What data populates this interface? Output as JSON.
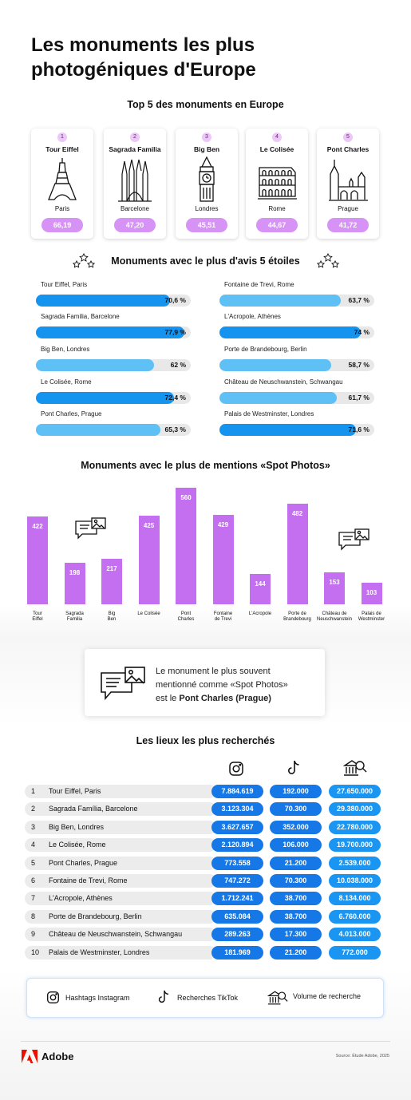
{
  "title": "Les monuments les plus photogéniques d'Europe",
  "top5": {
    "heading": "Top 5 des monuments en Europe",
    "items": [
      {
        "rank": "1",
        "name": "Tour Eiffel",
        "city": "Paris",
        "score": "66,19"
      },
      {
        "rank": "2",
        "name": "Sagrada Familia",
        "city": "Barcelone",
        "score": "47,20"
      },
      {
        "rank": "3",
        "name": "Big Ben",
        "city": "Londres",
        "score": "45,51"
      },
      {
        "rank": "4",
        "name": "Le Colisée",
        "city": "Rome",
        "score": "44,67"
      },
      {
        "rank": "5",
        "name": "Pont Charles",
        "city": "Prague",
        "score": "41,72"
      }
    ]
  },
  "ratings": {
    "heading": "Monuments avec le plus d'avis 5 étoiles",
    "dark_color": "#1493ef",
    "light_color": "#5fc0f5",
    "items": [
      {
        "label": "Tour Eiffel, Paris",
        "value": 70.6,
        "value_text": "70,6 %",
        "shade": "dark"
      },
      {
        "label": "Sagrada Familia, Barcelone",
        "value": 77.9,
        "value_text": "77,9 %",
        "shade": "dark"
      },
      {
        "label": "Big Ben, Londres",
        "value": 62,
        "value_text": "62 %",
        "shade": "light"
      },
      {
        "label": "Le Colisée, Rome",
        "value": 72.4,
        "value_text": "72,4 %",
        "shade": "dark"
      },
      {
        "label": "Pont Charles, Prague",
        "value": 65.3,
        "value_text": "65,3 %",
        "shade": "light"
      },
      {
        "label": "Fontaine de Trevi, Rome",
        "value": 63.7,
        "value_text": "63,7 %",
        "shade": "light"
      },
      {
        "label": "L'Acropole, Athènes",
        "value": 74,
        "value_text": "74 %",
        "shade": "dark"
      },
      {
        "label": "Porte de Brandebourg, Berlin",
        "value": 58.7,
        "value_text": "58,7 %",
        "shade": "light"
      },
      {
        "label": "Château de Neuschwanstein, Schwangau",
        "value": 61.7,
        "value_text": "61,7 %",
        "shade": "light"
      },
      {
        "label": "Palais de Westminster, Londres",
        "value": 71.6,
        "value_text": "71,6 %",
        "shade": "dark"
      }
    ]
  },
  "chart_data": {
    "type": "bar",
    "title": "Monuments avec le plus de mentions «Spot Photos»",
    "categories": [
      [
        "Tour",
        "Eiffel"
      ],
      [
        "Sagrada",
        "Familia"
      ],
      [
        "Big",
        "Ben"
      ],
      [
        "Le Colisée"
      ],
      [
        "Pont",
        "Charles"
      ],
      [
        "Fontaine",
        "de Trevi"
      ],
      [
        "L'Acropole"
      ],
      [
        "Porte de",
        "Brandebourg"
      ],
      [
        "Château de",
        "Neuschwanstein"
      ],
      [
        "Palais de",
        "Westminster"
      ]
    ],
    "values": [
      422,
      198,
      217,
      425,
      560,
      429,
      144,
      482,
      153,
      103
    ],
    "bar_color": "#c46ef0"
  },
  "callout": {
    "line1": "Le monument le plus souvent",
    "line2": "mentionné comme «Spot Photos»",
    "line3_prefix": "est le ",
    "line3_bold": "Pont Charles (Prague)"
  },
  "searched": {
    "heading": "Les lieux les plus recherchés",
    "colors": {
      "instagram": "#1678e6",
      "tiktok": "#1678e6",
      "search": "#1a96f2"
    },
    "rows": [
      {
        "rank": "1",
        "name": "Tour Eiffel, Paris",
        "instagram": "7.884.619",
        "tiktok": "192.000",
        "search": "27.650.000"
      },
      {
        "rank": "2",
        "name": "Sagrada Família, Barcelone",
        "instagram": "3.123.304",
        "tiktok": "70.300",
        "search": "29.380.000"
      },
      {
        "rank": "3",
        "name": "Big Ben, Londres",
        "instagram": "3.627.657",
        "tiktok": "352.000",
        "search": "22.780.000"
      },
      {
        "rank": "4",
        "name": "Le Colisée, Rome",
        "instagram": "2.120.894",
        "tiktok": "106.000",
        "search": "19.700.000"
      },
      {
        "rank": "5",
        "name": "Pont Charles, Prague",
        "instagram": "773.558",
        "tiktok": "21.200",
        "search": "2.539.000"
      },
      {
        "rank": "6",
        "name": "Fontaine de Trevi, Rome",
        "instagram": "747.272",
        "tiktok": "70.300",
        "search": "10.038.000"
      },
      {
        "rank": "7",
        "name": "L'Acropole, Athènes",
        "instagram": "1.712.241",
        "tiktok": "38.700",
        "search": "8.134.000"
      },
      {
        "rank": "8",
        "name": "Porte de Brandebourg, Berlin",
        "instagram": "635.084",
        "tiktok": "38.700",
        "search": "6.760.000"
      },
      {
        "rank": "9",
        "name": "Château de Neuschwanstein, Schwangau",
        "instagram": "289.263",
        "tiktok": "17.300",
        "search": "4.013.000"
      },
      {
        "rank": "10",
        "name": "Palais de Westminster, Londres",
        "instagram": "181.969",
        "tiktok": "21.200",
        "search": "772.000"
      }
    ]
  },
  "legend": {
    "instagram": "Hashtags Instagram",
    "tiktok": "Recherches TikTok",
    "search": "Volume de recherche"
  },
  "footer": {
    "brand": "Adobe",
    "source": "Source: Étude Adobe, 2025",
    "brand_color": "#eb1000"
  }
}
